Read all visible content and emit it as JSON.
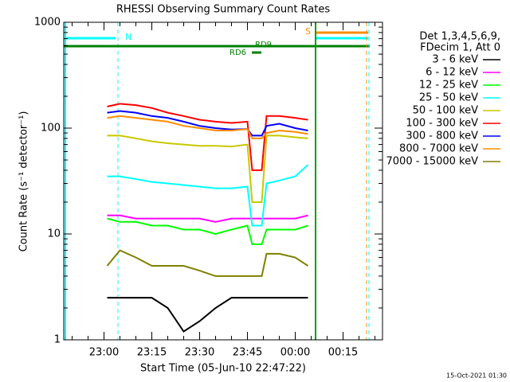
{
  "chart_data": {
    "type": "line",
    "title": "RHESSI Observing Summary Count Rates",
    "xlabel": "Start Time (05-Jun-10 22:47:22)",
    "ylabel": "Count Rate (s⁻¹ detector⁻¹)",
    "y_log_scale": true,
    "xlim": [
      1367.37,
      1467.37
    ],
    "ylim": [
      1,
      1000
    ],
    "xticks": [
      {
        "value": 1380,
        "label": "23:00"
      },
      {
        "value": 1395,
        "label": "23:15"
      },
      {
        "value": 1410,
        "label": "23:30"
      },
      {
        "value": 1425,
        "label": "23:45"
      },
      {
        "value": 1440,
        "label": "00:00"
      },
      {
        "value": 1455,
        "label": "00:15"
      }
    ],
    "yticks": [
      1,
      10,
      100,
      1000
    ],
    "legend_title": [
      "Det 1,3,4,5,6,9,",
      "FDecim 1, Att 0"
    ],
    "legend_position": "right",
    "annotations": {
      "north": "N",
      "south": "S",
      "rd9": "RD9",
      "rd6": "RD6"
    },
    "footer": "15-Oct-2021 01:30",
    "x": [
      1381,
      1385,
      1390,
      1395,
      1400,
      1405,
      1410,
      1415,
      1420,
      1425,
      1426.5,
      1429.5,
      1431,
      1435,
      1440,
      1444
    ],
    "series": [
      {
        "name": "3 - 6 keV",
        "color": "#000000",
        "values": [
          2.5,
          2.5,
          2.5,
          2.5,
          2,
          1.2,
          1.5,
          2,
          2.5,
          2.5,
          2.5,
          2.5,
          2.5,
          2.5,
          2.5,
          2.5
        ]
      },
      {
        "name": "6 - 12 keV",
        "color": "#ff00ff",
        "values": [
          15,
          15,
          14,
          14,
          14,
          14,
          14,
          13,
          14,
          14,
          14,
          14,
          14,
          14,
          14,
          15
        ]
      },
      {
        "name": "12 - 25 keV",
        "color": "#00ff00",
        "values": [
          14,
          13,
          13,
          12,
          12,
          11,
          11,
          10,
          11,
          12,
          8,
          8,
          11,
          11,
          11,
          12
        ]
      },
      {
        "name": "25 - 50 keV",
        "color": "#00ffff",
        "values": [
          35,
          35,
          33,
          31,
          30,
          29,
          28,
          27,
          27,
          28,
          12,
          12,
          30,
          32,
          35,
          45
        ]
      },
      {
        "name": "50 - 100 keV",
        "color": "#c8c800",
        "values": [
          85,
          85,
          80,
          75,
          72,
          70,
          68,
          68,
          67,
          70,
          20,
          20,
          85,
          85,
          82,
          80
        ]
      },
      {
        "name": "100 - 300 keV",
        "color": "#ff0000",
        "values": [
          160,
          170,
          165,
          155,
          140,
          130,
          120,
          115,
          112,
          115,
          40,
          40,
          130,
          130,
          125,
          120
        ]
      },
      {
        "name": "300 - 800 keV",
        "color": "#0000ff",
        "values": [
          140,
          145,
          140,
          130,
          125,
          115,
          105,
          100,
          97,
          98,
          85,
          85,
          105,
          110,
          100,
          95
        ]
      },
      {
        "name": "800 - 7000 keV",
        "color": "#ff8c00",
        "values": [
          125,
          130,
          125,
          120,
          115,
          105,
          100,
          95,
          95,
          98,
          80,
          80,
          90,
          95,
          92,
          88
        ]
      },
      {
        "name": "7000 - 15000 keV",
        "color": "#808000",
        "values": [
          5,
          7,
          6,
          5,
          5,
          5,
          4.5,
          4,
          4,
          4,
          4,
          4,
          6.5,
          6.5,
          6,
          5
        ]
      }
    ]
  }
}
